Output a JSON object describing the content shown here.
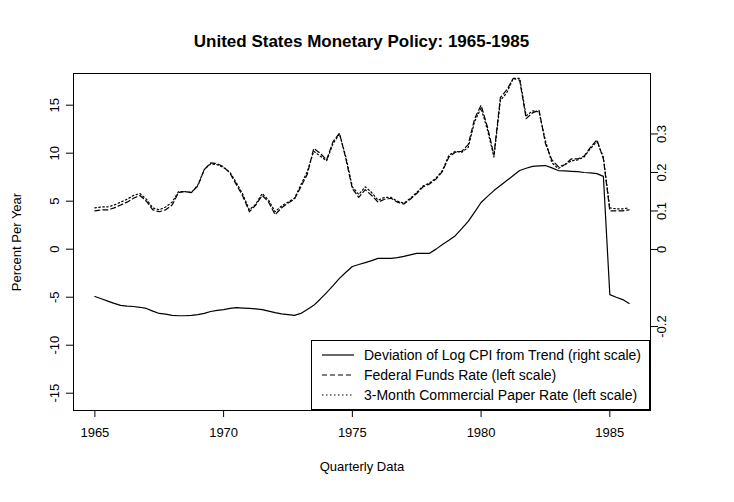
{
  "chart_data": {
    "type": "line",
    "title": "United States Monetary Policy: 1965-1985",
    "x_label": "Quarterly Data",
    "y_label": "Percent Per Year",
    "x": [
      1965,
      1965.25,
      1965.5,
      1965.75,
      1966,
      1966.25,
      1966.5,
      1966.75,
      1967,
      1967.25,
      1967.5,
      1967.75,
      1968,
      1968.25,
      1968.5,
      1968.75,
      1969,
      1969.25,
      1969.5,
      1969.75,
      1970,
      1970.25,
      1970.5,
      1970.75,
      1971,
      1971.25,
      1971.5,
      1971.75,
      1972,
      1972.25,
      1972.5,
      1972.75,
      1973,
      1973.25,
      1973.5,
      1973.75,
      1974,
      1974.25,
      1974.5,
      1974.75,
      1975,
      1975.25,
      1975.5,
      1975.75,
      1976,
      1976.25,
      1976.5,
      1976.75,
      1977,
      1977.25,
      1977.5,
      1977.75,
      1978,
      1978.25,
      1978.5,
      1978.75,
      1979,
      1979.25,
      1979.5,
      1979.75,
      1980,
      1980.25,
      1980.5,
      1980.75,
      1981,
      1981.25,
      1981.5,
      1981.75,
      1982,
      1982.25,
      1982.5,
      1982.75,
      1983,
      1983.25,
      1983.5,
      1983.75,
      1984,
      1984.25,
      1984.5,
      1984.75,
      1985,
      1985.25,
      1985.5,
      1985.75
    ],
    "xlim": [
      1964.17,
      1986.58
    ],
    "xticks": [
      1965,
      1970,
      1975,
      1980,
      1985
    ],
    "ylim": [
      -16.8,
      18.3
    ],
    "yticks": [
      -15,
      -10,
      -5,
      0,
      5,
      10,
      15
    ],
    "y2lim": [
      -0.418,
      0.457
    ],
    "y2ticks": [
      -0.2,
      0,
      0.1,
      0.2,
      0.3
    ],
    "legend": "bottom-right",
    "series": [
      {
        "name": "Deviation of Log CPI from Trend (right scale)",
        "color": "#000000",
        "line_style": "solid",
        "axis": "y2",
        "values": [
          -0.122,
          -0.128,
          -0.134,
          -0.14,
          -0.145,
          -0.147,
          -0.148,
          -0.15,
          -0.153,
          -0.16,
          -0.166,
          -0.168,
          -0.171,
          -0.172,
          -0.172,
          -0.171,
          -0.169,
          -0.166,
          -0.161,
          -0.158,
          -0.156,
          -0.153,
          -0.151,
          -0.152,
          -0.153,
          -0.154,
          -0.156,
          -0.16,
          -0.164,
          -0.167,
          -0.169,
          -0.171,
          -0.166,
          -0.156,
          -0.145,
          -0.129,
          -0.112,
          -0.094,
          -0.075,
          -0.059,
          -0.044,
          -0.039,
          -0.034,
          -0.029,
          -0.023,
          -0.023,
          -0.023,
          -0.021,
          -0.018,
          -0.014,
          -0.01,
          -0.01,
          -0.01,
          0.001,
          0.013,
          0.024,
          0.036,
          0.054,
          0.073,
          0.097,
          0.122,
          0.138,
          0.153,
          0.166,
          0.179,
          0.192,
          0.205,
          0.211,
          0.216,
          0.217,
          0.218,
          0.212,
          0.205,
          0.204,
          0.203,
          0.202,
          0.2,
          0.199,
          0.197,
          0.19,
          -0.117,
          -0.124,
          -0.13,
          -0.14
        ]
      },
      {
        "name": "Federal Funds Rate (left scale)",
        "color": "#000000",
        "line_style": "dashed",
        "values": [
          4.0,
          4.1,
          4.1,
          4.3,
          4.6,
          4.9,
          5.3,
          5.6,
          5.0,
          4.1,
          3.9,
          4.1,
          4.6,
          5.9,
          6.0,
          5.9,
          6.6,
          8.3,
          9.0,
          8.9,
          8.6,
          7.9,
          6.7,
          5.5,
          3.9,
          4.6,
          5.6,
          4.9,
          3.6,
          4.3,
          4.8,
          5.2,
          6.5,
          7.8,
          10.5,
          10.0,
          9.3,
          11.2,
          12.1,
          9.4,
          6.3,
          5.4,
          6.2,
          5.6,
          4.9,
          5.2,
          5.3,
          4.9,
          4.7,
          5.2,
          5.8,
          6.5,
          6.8,
          7.3,
          8.1,
          9.6,
          10.1,
          10.2,
          10.9,
          13.6,
          15.0,
          12.7,
          9.8,
          15.8,
          16.6,
          17.8,
          17.6,
          13.6,
          14.2,
          14.5,
          11.0,
          9.3,
          8.6,
          8.8,
          9.4,
          9.4,
          9.7,
          10.6,
          11.4,
          9.4,
          4.0,
          4.0,
          4.0,
          4.1
        ]
      },
      {
        "name": "3-Month Commercial Paper Rate (left scale)",
        "color": "#000000",
        "line_style": "dotted",
        "values": [
          4.3,
          4.4,
          4.4,
          4.6,
          4.9,
          5.2,
          5.6,
          5.8,
          5.2,
          4.3,
          4.1,
          4.4,
          4.9,
          6.0,
          6.0,
          5.9,
          6.7,
          8.3,
          8.9,
          8.8,
          8.5,
          8.0,
          6.9,
          5.7,
          4.1,
          4.7,
          5.8,
          5.1,
          3.9,
          4.5,
          4.9,
          5.3,
          6.7,
          8.1,
          10.2,
          9.7,
          9.2,
          11.0,
          12.0,
          9.6,
          6.5,
          5.7,
          6.5,
          5.9,
          5.1,
          5.4,
          5.4,
          5.0,
          4.8,
          5.3,
          5.9,
          6.6,
          6.9,
          7.4,
          8.2,
          9.8,
          10.2,
          10.1,
          10.6,
          13.3,
          14.7,
          12.4,
          9.6,
          15.5,
          16.3,
          17.8,
          17.8,
          13.9,
          14.4,
          14.3,
          11.3,
          9.0,
          8.4,
          8.8,
          9.2,
          9.3,
          9.6,
          10.5,
          11.2,
          9.6,
          4.3,
          4.2,
          4.2,
          4.3
        ]
      }
    ]
  }
}
